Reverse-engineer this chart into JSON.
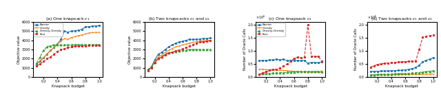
{
  "x": [
    0.1,
    0.15,
    0.2,
    0.25,
    0.3,
    0.35,
    0.4,
    0.45,
    0.5,
    0.55,
    0.6,
    0.65,
    0.7,
    0.75,
    0.8,
    0.85,
    0.9,
    0.95,
    1.0
  ],
  "a_barrier": [
    1400,
    1700,
    2100,
    2500,
    2900,
    3200,
    3600,
    4100,
    5000,
    4900,
    5000,
    5050,
    5100,
    5200,
    5450,
    5500,
    5550,
    5580,
    5600
  ],
  "a_greedy": [
    1400,
    1800,
    2100,
    2500,
    2900,
    3200,
    3600,
    3900,
    4200,
    4100,
    4300,
    4400,
    4500,
    4600,
    4700,
    4800,
    4850,
    4860,
    4870
  ],
  "a_density_greedy": [
    1500,
    2200,
    2900,
    3300,
    3400,
    3500,
    3500,
    3500,
    3500,
    3500,
    3520,
    3530,
    3530,
    3530,
    3530,
    3540,
    3540,
    3540,
    3540
  ],
  "a_fast": [
    1200,
    1400,
    1700,
    2000,
    2200,
    2500,
    2800,
    3000,
    3100,
    3200,
    3300,
    3350,
    3380,
    3400,
    3400,
    3420,
    3420,
    3430,
    3430
  ],
  "b_barrier": [
    800,
    1100,
    1900,
    2500,
    2700,
    3000,
    3300,
    3500,
    3700,
    3800,
    3900,
    4000,
    4100,
    4100,
    4100,
    4150,
    4200,
    4200,
    4250
  ],
  "b_greedy": [
    700,
    1000,
    1700,
    2200,
    2400,
    2700,
    2900,
    3100,
    3300,
    3400,
    3500,
    3600,
    3700,
    3800,
    3850,
    3900,
    3950,
    3980,
    4000
  ],
  "b_density_greedy": [
    800,
    1100,
    1600,
    2000,
    2200,
    2500,
    2650,
    2700,
    2800,
    2850,
    2900,
    2950,
    2980,
    3000,
    3000,
    3000,
    3000,
    3000,
    3000
  ],
  "b_fast": [
    700,
    1000,
    1600,
    2000,
    2200,
    2400,
    2600,
    2700,
    2850,
    2950,
    3050,
    3200,
    3400,
    3550,
    3700,
    3800,
    3850,
    3900,
    3950
  ],
  "c_barrier": [
    620000,
    630000,
    630000,
    650000,
    650000,
    670000,
    660000,
    670000,
    630000,
    640000,
    630000,
    620000,
    620000,
    640000,
    520000,
    560000,
    550000,
    550000,
    570000
  ],
  "c_greedy": [
    300000,
    300000,
    280000,
    280000,
    270000,
    260000,
    250000,
    250000,
    240000,
    230000,
    220000,
    210000,
    210000,
    200000,
    190000,
    190000,
    180000,
    180000,
    170000
  ],
  "c_density_greedy": [
    100000,
    120000,
    130000,
    140000,
    150000,
    160000,
    170000,
    170000,
    180000,
    190000,
    190000,
    200000,
    200000,
    210000,
    210000,
    210000,
    210000,
    220000,
    220000
  ],
  "c_fast": [
    100000,
    150000,
    200000,
    250000,
    280000,
    300000,
    350000,
    420000,
    500000,
    600000,
    700000,
    750000,
    730000,
    750000,
    2000000,
    800000,
    780000,
    780000,
    600000
  ],
  "d_barrier": [
    220000,
    220000,
    220000,
    225000,
    230000,
    235000,
    240000,
    245000,
    250000,
    260000,
    275000,
    295000,
    320000,
    360000,
    450000,
    580000,
    640000,
    680000,
    740000
  ],
  "d_greedy": [
    80000,
    80000,
    80000,
    82000,
    83000,
    84000,
    86000,
    88000,
    90000,
    92000,
    93000,
    95000,
    97000,
    100000,
    102000,
    105000,
    108000,
    110000,
    112000
  ],
  "d_density_greedy": [
    80000,
    90000,
    95000,
    100000,
    105000,
    110000,
    115000,
    120000,
    125000,
    130000,
    135000,
    140000,
    150000,
    160000,
    170000,
    185000,
    200000,
    220000,
    240000
  ],
  "d_fast": [
    380000,
    430000,
    480000,
    500000,
    520000,
    535000,
    545000,
    555000,
    565000,
    575000,
    585000,
    595000,
    605000,
    615000,
    1050000,
    1520000,
    1560000,
    1580000,
    1590000
  ],
  "colors": {
    "barrier": "#1f77b4",
    "greedy": "#ff7f0e",
    "density_greedy": "#2ca02c",
    "fast": "#d62728"
  },
  "markers": {
    "barrier": "s",
    "greedy": "+",
    "density_greedy": "^",
    "fast": "s"
  },
  "linestyles": {
    "barrier": "-",
    "greedy": "-",
    "density_greedy": "--",
    "fast": "--"
  },
  "labels": [
    "Barrier",
    "Greedy",
    "Density-Greedy",
    "Fast"
  ],
  "subplot_titles": [
    "(a) One knapsack $c_1$",
    "(b) Two knapsacks $c_1$ and $c_2$",
    "(c) One knapsack $c_1$",
    "(d) Two knapsacks $c_1$ and $c_2$"
  ],
  "ylabels": [
    "Objective value",
    "Objective value",
    "Number of Oracle Calls",
    "Number of Oracle Calls"
  ],
  "xlabel": "Knapsack budget",
  "ab_ylim": [
    0,
    6000
  ],
  "cd_ylim": [
    0,
    2100000
  ]
}
